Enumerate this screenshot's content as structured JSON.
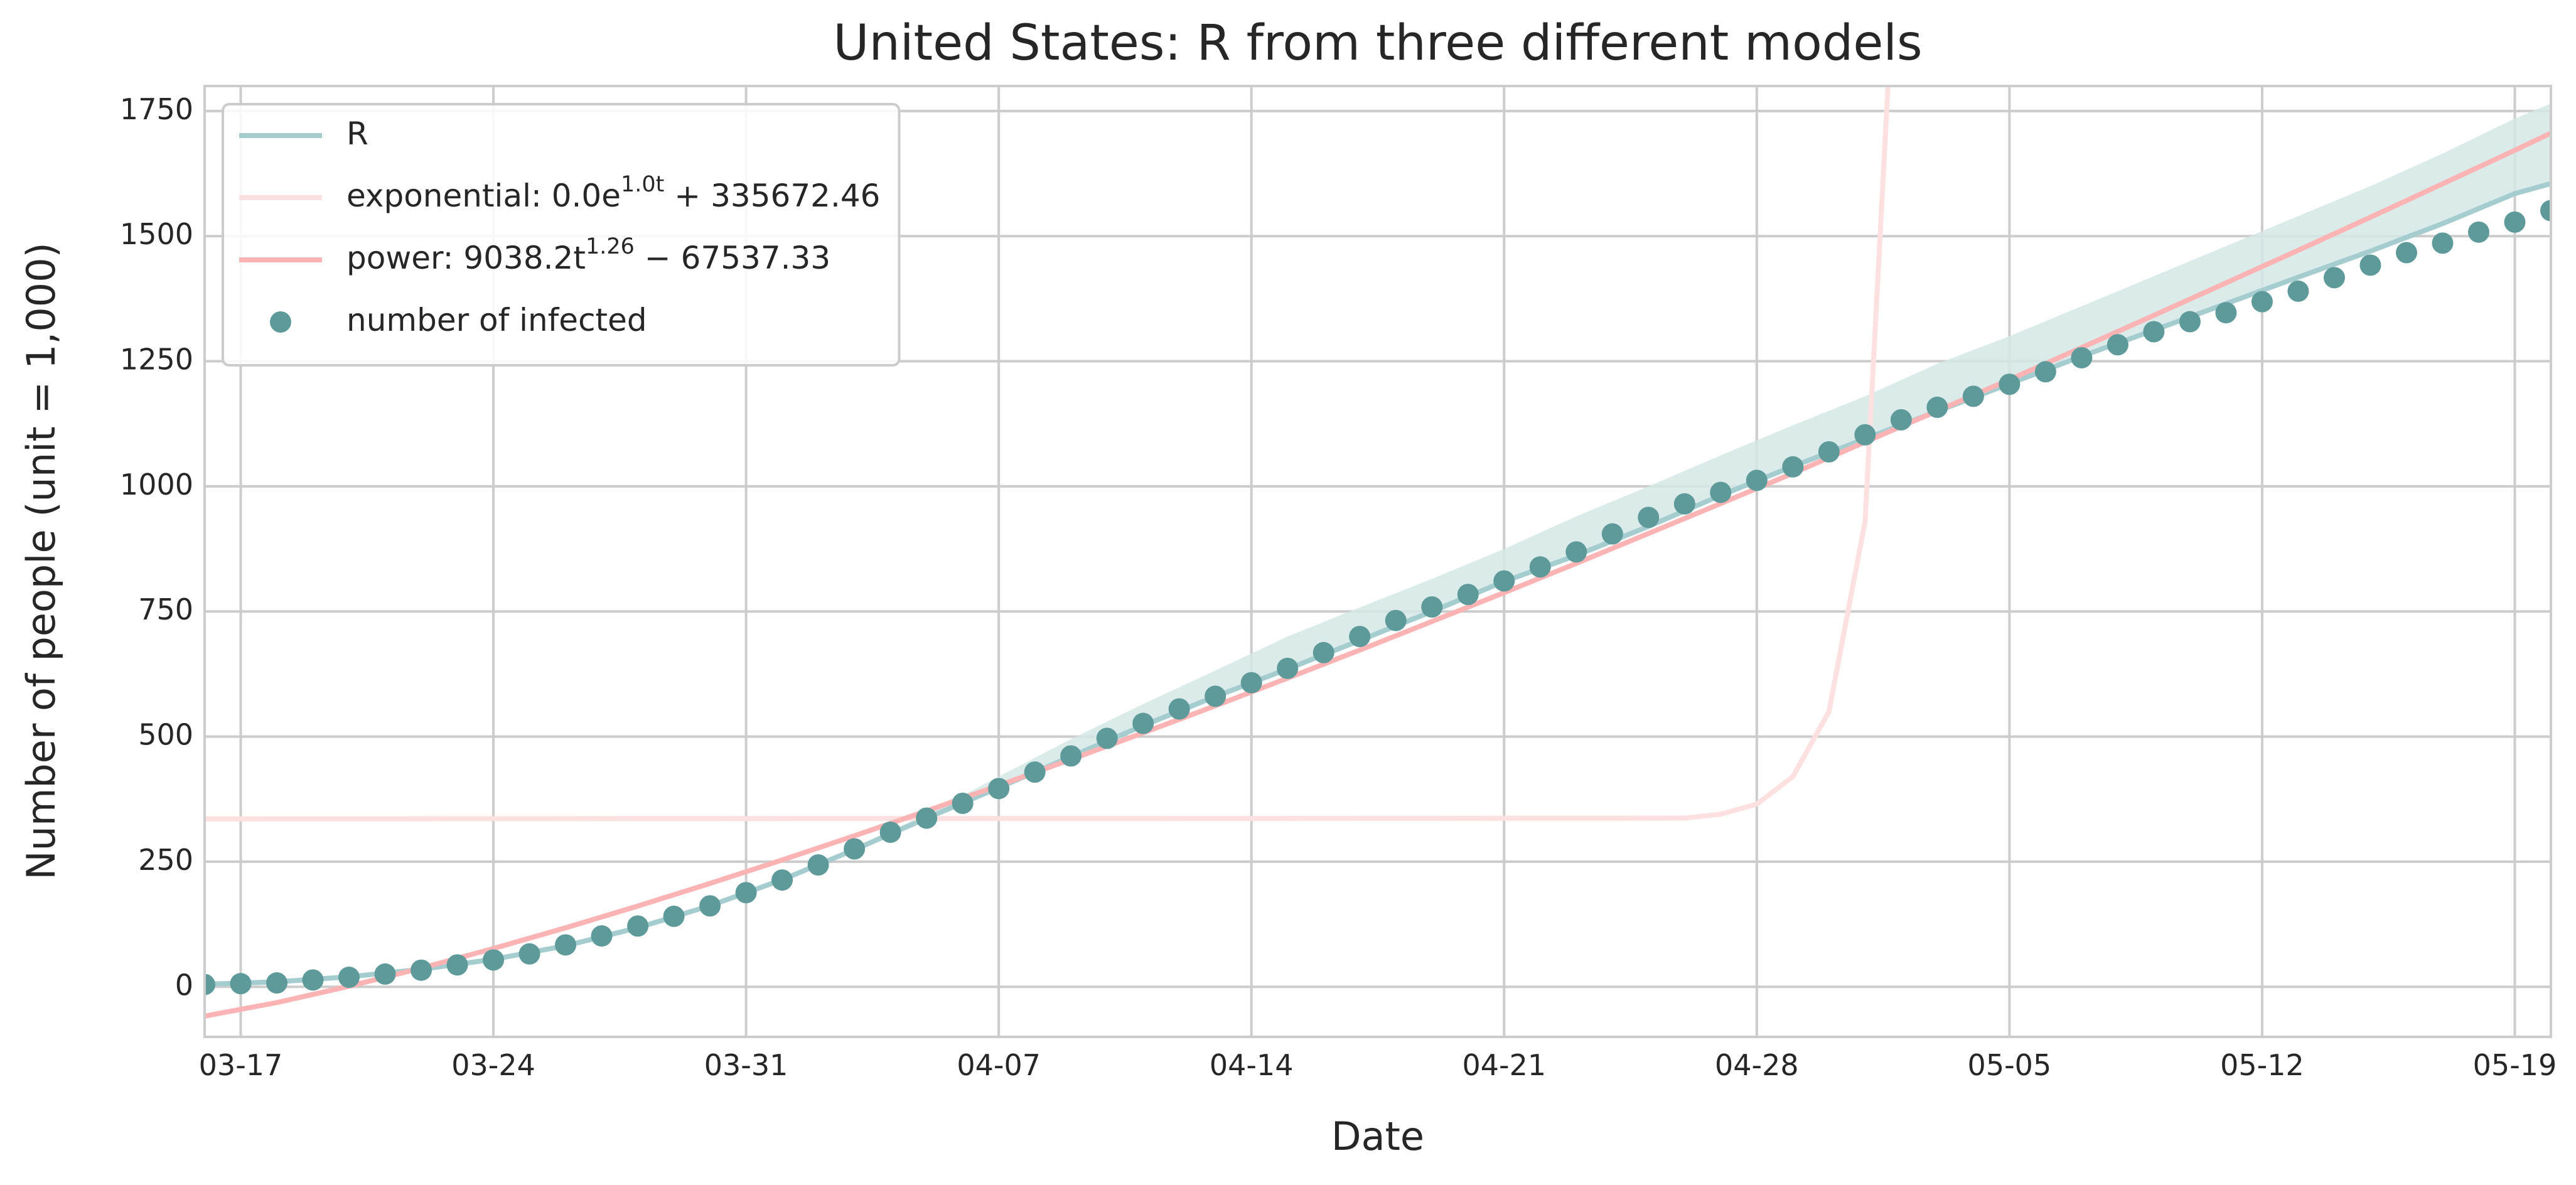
{
  "chart_data": {
    "type": "line",
    "title": "United States: R from three different models",
    "xlabel": "Date",
    "ylabel": "Number of people (unit = 1,000)",
    "xlim": [
      "03-16",
      "05-20"
    ],
    "xticks": [
      "03-17",
      "03-24",
      "03-31",
      "04-07",
      "04-14",
      "04-21",
      "04-28",
      "05-05",
      "05-12",
      "05-19"
    ],
    "ylim": [
      -100,
      1800
    ],
    "yticks": [
      0,
      250,
      500,
      750,
      1000,
      1250,
      1500,
      1750
    ],
    "grid": true,
    "legend": "upper left",
    "series": [
      {
        "name": "R",
        "type": "line",
        "color": "#a5cdd0",
        "band_color": "#d4e7e6",
        "x": [
          "03-16",
          "03-18",
          "03-20",
          "03-22",
          "03-24",
          "03-26",
          "03-28",
          "03-30",
          "04-01",
          "04-03",
          "04-05",
          "04-07",
          "04-09",
          "04-11",
          "04-13",
          "04-15",
          "04-17",
          "04-19",
          "04-21",
          "04-23",
          "04-25",
          "04-27",
          "04-29",
          "05-01",
          "05-03",
          "05-05",
          "05-07",
          "05-09",
          "05-11",
          "05-13",
          "05-15",
          "05-17",
          "05-19",
          "05-20"
        ],
        "values": [
          5,
          10,
          20,
          35,
          55,
          82,
          118,
          162,
          214,
          274,
          337,
          398,
          460,
          522,
          580,
          635,
          692,
          750,
          810,
          862,
          920,
          982,
          1040,
          1095,
          1150,
          1205,
          1260,
          1312,
          1365,
          1418,
          1470,
          1525,
          1585,
          1605
        ],
        "band_lower": [
          0,
          5,
          15,
          30,
          50,
          77,
          113,
          157,
          209,
          269,
          332,
          393,
          455,
          517,
          575,
          630,
          687,
          745,
          805,
          857,
          915,
          977,
          1035,
          1090,
          1145,
          1200,
          1255,
          1307,
          1360,
          1413,
          1465,
          1520,
          1580,
          1600
        ],
        "band_upper": [
          10,
          15,
          25,
          40,
          60,
          87,
          123,
          167,
          219,
          279,
          345,
          420,
          495,
          565,
          632,
          700,
          758,
          815,
          875,
          940,
          1000,
          1062,
          1122,
          1180,
          1245,
          1300,
          1360,
          1420,
          1480,
          1540,
          1600,
          1665,
          1735,
          1765
        ]
      },
      {
        "name": "exponential: 0.0e^{1.0t} + 335672.46",
        "type": "line",
        "color": "#fde0e0",
        "x": [
          "03-16",
          "04-26",
          "04-27",
          "04-28",
          "04-29",
          "04-30",
          "05-01",
          "05-02"
        ],
        "values": [
          335.67,
          337,
          345,
          365,
          420,
          550,
          930,
          2300
        ]
      },
      {
        "name": "power: 9038.2t^{1.26} − 67537.33",
        "type": "line",
        "color": "#fcb3b3",
        "x": [
          "03-16",
          "03-18",
          "03-20",
          "03-22",
          "03-24",
          "03-26",
          "03-28",
          "03-30",
          "04-01",
          "04-03",
          "04-05",
          "04-07",
          "04-09",
          "04-11",
          "04-13",
          "04-15",
          "04-17",
          "04-19",
          "04-21",
          "04-23",
          "04-25",
          "04-27",
          "04-29",
          "05-01",
          "05-03",
          "05-05",
          "05-07",
          "05-09",
          "05-11",
          "05-13",
          "05-15",
          "05-17",
          "05-19",
          "05-20"
        ],
        "values": [
          -58.5,
          -31.5,
          1.1,
          37.4,
          76.5,
          117.9,
          161.4,
          206.6,
          253.4,
          301.7,
          351.4,
          402.3,
          454.4,
          507.4,
          561.5,
          616.7,
          672.8,
          730.0,
          787.6,
          846.2,
          905.9,
          965.6,
          1026.1,
          1088.5,
          1150.8,
          1213.2,
          1277.3,
          1341.6,
          1406.6,
          1471.7,
          1537.7,
          1604.5,
          1671.4,
          1705.8
        ]
      },
      {
        "name": "number of infected",
        "type": "scatter",
        "color": "#5f9a9a",
        "x": [
          "03-16",
          "03-17",
          "03-18",
          "03-19",
          "03-20",
          "03-21",
          "03-22",
          "03-23",
          "03-24",
          "03-25",
          "03-26",
          "03-27",
          "03-28",
          "03-29",
          "03-30",
          "03-31",
          "04-01",
          "04-02",
          "04-03",
          "04-04",
          "04-05",
          "04-06",
          "04-07",
          "04-08",
          "04-09",
          "04-10",
          "04-11",
          "04-12",
          "04-13",
          "04-14",
          "04-15",
          "04-16",
          "04-17",
          "04-18",
          "04-19",
          "04-20",
          "04-21",
          "04-22",
          "04-23",
          "04-24",
          "04-25",
          "04-26",
          "04-27",
          "04-28",
          "04-29",
          "04-30",
          "05-01",
          "05-02",
          "05-03",
          "05-04",
          "05-05",
          "05-06",
          "05-07",
          "05-08",
          "05-09",
          "05-10",
          "05-11",
          "05-12",
          "05-13",
          "05-14",
          "05-15",
          "05-16",
          "05-17",
          "05-18",
          "05-19",
          "05-20"
        ],
        "values": [
          4.6,
          6.4,
          7.8,
          13.7,
          19.1,
          25.5,
          33.3,
          43.8,
          53.7,
          65.8,
          83.8,
          101.7,
          121.5,
          140.9,
          161.8,
          188.2,
          213.4,
          243.6,
          275.6,
          308.9,
          337.1,
          366.7,
          396.2,
          429.1,
          461.4,
          496.5,
          526.4,
          555.3,
          580.6,
          607.7,
          636.4,
          667.8,
          700,
          732,
          759,
          784,
          811,
          839,
          869,
          905,
          938,
          965,
          988,
          1012,
          1039,
          1069,
          1103,
          1133,
          1158,
          1180,
          1204,
          1229,
          1257,
          1283,
          1309,
          1329,
          1347,
          1369,
          1390,
          1417,
          1442,
          1467,
          1486,
          1508,
          1528,
          1551
        ]
      }
    ]
  }
}
